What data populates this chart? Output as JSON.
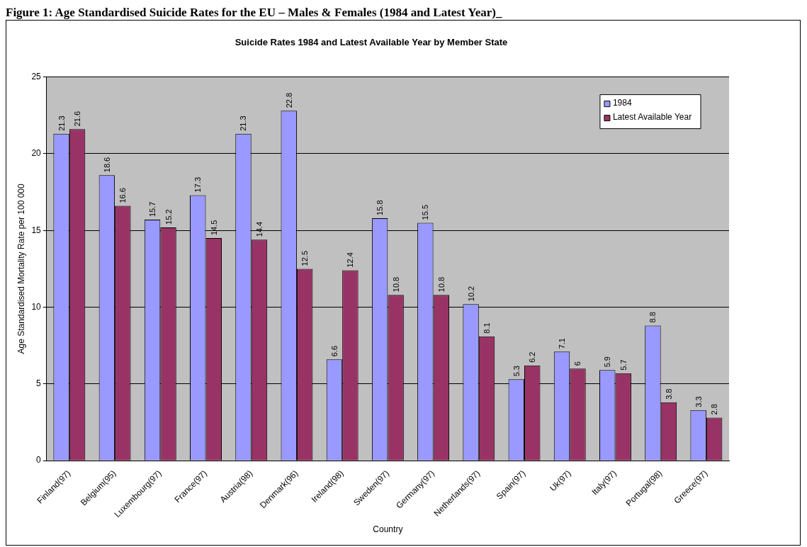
{
  "chart_data": {
    "type": "bar",
    "title": "Suicide Rates 1984 and Latest Available Year by Member State",
    "annotations": [
      "Figure 1: Age Standardised Suicide Rates for the EU – Males & Females (1984 and Latest Year)_"
    ],
    "xlabel": "Country",
    "ylabel": "Age Standardised Mortality Rate per 100 000",
    "categories": [
      "Finland(97)",
      "Belgium(95)",
      "Luxembourg(97)",
      "France(97)",
      "Austria(98)",
      "Denmark(96)",
      "Ireland(98)",
      "Sweden(97)",
      "Germany(97)",
      "Netherlands(97)",
      "Spain(97)",
      "Uk(97)",
      "Italy(97)",
      "Portugal(98)",
      "Greece(97)"
    ],
    "series": [
      {
        "name": "1984",
        "color": "#9999ff",
        "values": [
          21.3,
          18.6,
          15.7,
          17.3,
          21.3,
          22.8,
          6.6,
          15.8,
          15.5,
          10.2,
          5.3,
          7.1,
          5.9,
          8.8,
          3.3
        ]
      },
      {
        "name": "Latest Available Year",
        "color": "#993366",
        "values": [
          21.6,
          16.6,
          15.2,
          14.5,
          14.4,
          12.5,
          12.4,
          10.8,
          10.8,
          8.1,
          6.2,
          6,
          5.7,
          3.8,
          2.8
        ]
      }
    ],
    "ylim": [
      0,
      25
    ],
    "yticks": [
      0,
      5,
      10,
      15,
      20,
      25
    ],
    "grid": "y",
    "legend": "top right",
    "data_labels": true
  }
}
